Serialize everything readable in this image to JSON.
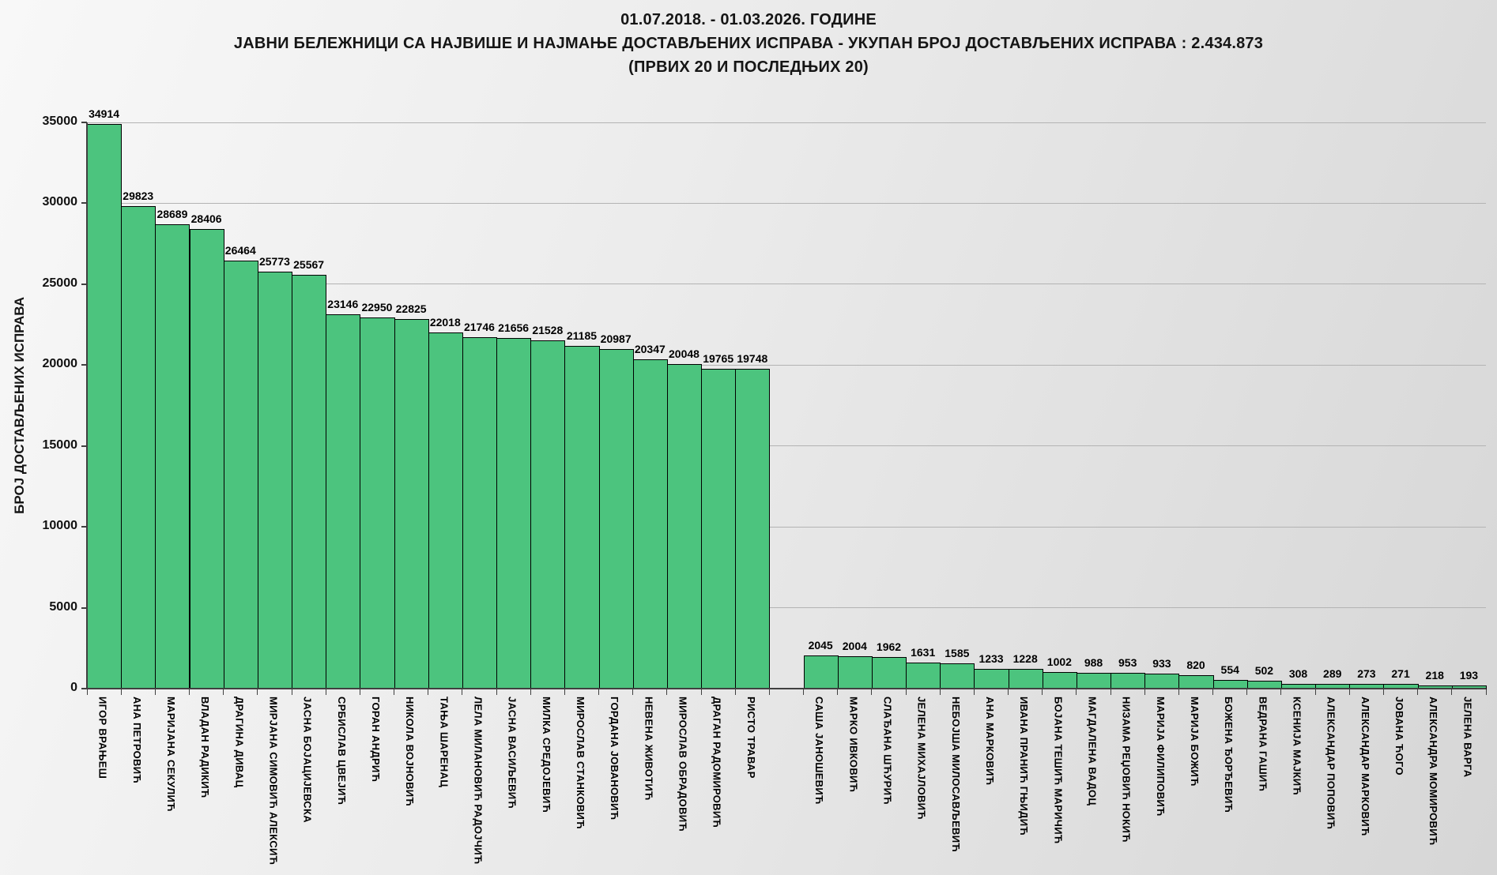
{
  "title": {
    "line1": "01.07.2018.  - 01.03.2026.  ГОДИНЕ",
    "line2": "ЈАВНИ БЕЛЕЖНИЦИ СА НАЈВИШЕ И НАЈМАЊЕ ДОСТАВЉЕНИХ ИСПРАВА - УКУПАН БРОЈ ДОСТАВЉЕНИХ ИСПРАВА : 2.434.873",
    "line3": "(ПРВИХ 20 И ПОСЛЕДЊИХ 20)"
  },
  "chart_data": {
    "type": "bar",
    "ylabel": "БРОЈ ДОСТАВЉЕНИХ ИСПРАВА",
    "xlabel": "",
    "ylim": [
      0,
      35000
    ],
    "ytick_step": 5000,
    "grid": true,
    "legend": "none",
    "bar_color": "#4cc47e",
    "bar_border_color": "#000000",
    "groups": [
      {
        "name": "first-20",
        "categories": [
          "ИГОР ВРАЊЕШ",
          "АНА ПЕТРОВИЋ",
          "МАРИЈАНА СЕКУЛИЋ",
          "ВЛАДАН РАДИКИЋ",
          "ДРАГИНА ДИВАЦ",
          "МИРЈАНА СИМОВИЋ АЛЕКСИЋ",
          "ЈАСНА БОЈАЦИЈЕВСКА",
          "СРБИСЛАВ ЦВЕЈИЋ",
          "ГОРАН АНДРИЋ",
          "НИКОЛА ВОЈНОВИЋ",
          "ТАЊА ШАРЕНАЦ",
          "ЛЕЛА МИЛАНОВИЋ РАДОЈЧИЋ",
          "ЈАСНА ВАСИЉЕВИЋ",
          "МИЛКА СРЕДОЈЕВИЋ",
          "МИРОСЛАВ СТАНКОВИЋ",
          "ГОРДАНА ЈОВАНОВИЋ",
          "НЕВЕНА ЖИВОТИЋ",
          "МИРОСЛАВ ОБРАДОВИЋ",
          "ДРАГАН РАДОМИРОВИЋ",
          "РИСТО ТРАВАР"
        ],
        "values": [
          34914,
          29823,
          28689,
          28406,
          26464,
          25773,
          25567,
          23146,
          22950,
          22825,
          22018,
          21746,
          21656,
          21528,
          21185,
          20987,
          20347,
          20048,
          19765,
          19748
        ]
      },
      {
        "name": "last-20",
        "categories": [
          "САША ЈАНОШЕВИЋ",
          "МАРКО ИВКОВИЋ",
          "СЛАЂАНА ШЋУРИЋ",
          "ЈЕЛЕНА МИХАЈЛОВИЋ",
          "НЕБОЈША МИЛОСАВЉЕВИЋ",
          "АНА МАРКОВИЋ",
          "ИВАНА ПРАНИЋ ГЊИДИЋ",
          "БОЈАНА ТЕШИЋ МАРИЧИЋ",
          "МАГДАЛЕНА ВАДОЦ",
          "НИЗАМА РЕЏОВИЋ НОКИЋ",
          "МАРИЈА ФИЛИПОВИЋ",
          "МАРИЈА БОЖИЋ",
          "БОЖЕНА ЂОРЂЕВИЋ",
          "ВЕДРАНА ГАШИЋ",
          "КСЕНИЈА МАЈКИЋ",
          "АЛЕКСАНДАР ПОПОВИЋ",
          "АЛЕКСАНДАР МАРКОВИЋ",
          "ЈОВАНА ЋОГО",
          "АЛЕКСАНДРА МОМИРОВИЋ",
          "ЈЕЛЕНА ВАРГА"
        ],
        "values": [
          2045,
          2004,
          1962,
          1631,
          1585,
          1233,
          1228,
          1002,
          988,
          953,
          933,
          820,
          554,
          502,
          308,
          289,
          273,
          271,
          218,
          193
        ]
      }
    ]
  }
}
